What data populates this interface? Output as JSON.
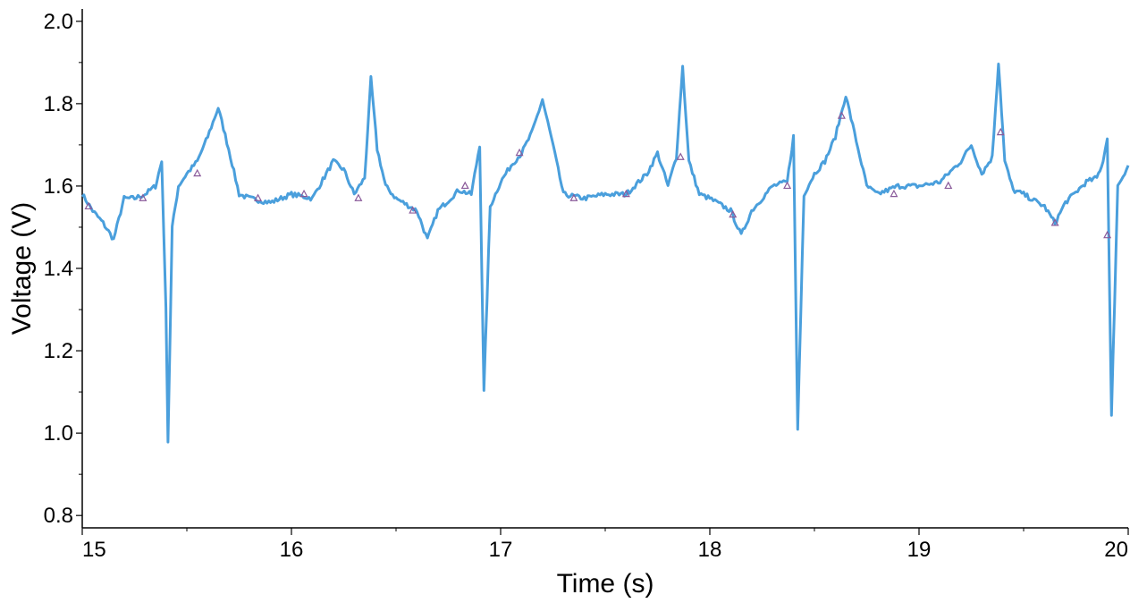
{
  "chart_data": {
    "type": "line",
    "title": "",
    "xlabel": "Time (s)",
    "ylabel": "Voltage (V)",
    "xlim": [
      15,
      20
    ],
    "ylim": [
      0.77,
      2.03
    ],
    "xticks": [
      15,
      16,
      17,
      18,
      19,
      20
    ],
    "yticks": [
      0.8,
      1.0,
      1.2,
      1.4,
      1.6,
      1.8,
      2.0
    ],
    "ytick_labels": [
      "0.8",
      "1.0",
      "1.2",
      "1.4",
      "1.6",
      "1.8",
      "2.0"
    ],
    "grid": false,
    "legend": "none",
    "series": [
      {
        "color": "#4a9fdc",
        "x": [
          15.0,
          15.05,
          15.1,
          15.15,
          15.2,
          15.25,
          15.3,
          15.35,
          15.38,
          15.4,
          15.41,
          15.43,
          15.46,
          15.5,
          15.55,
          15.6,
          15.65,
          15.7,
          15.75,
          15.8,
          15.9,
          16.0,
          16.1,
          16.2,
          16.25,
          16.3,
          16.35,
          16.38,
          16.41,
          16.45,
          16.5,
          16.6,
          16.65,
          16.7,
          16.8,
          16.86,
          16.9,
          16.92,
          16.95,
          17.0,
          17.05,
          17.1,
          17.15,
          17.2,
          17.25,
          17.3,
          17.4,
          17.5,
          17.6,
          17.7,
          17.75,
          17.8,
          17.84,
          17.87,
          17.9,
          17.95,
          18.0,
          18.1,
          18.15,
          18.2,
          18.3,
          18.37,
          18.4,
          18.42,
          18.45,
          18.5,
          18.55,
          18.6,
          18.65,
          18.7,
          18.75,
          18.8,
          18.9,
          19.0,
          19.1,
          19.2,
          19.25,
          19.3,
          19.35,
          19.38,
          19.41,
          19.45,
          19.5,
          19.6,
          19.65,
          19.7,
          19.8,
          19.85,
          19.88,
          19.9,
          19.92,
          19.95,
          20.0
        ],
        "y": [
          1.58,
          1.54,
          1.51,
          1.47,
          1.57,
          1.57,
          1.58,
          1.6,
          1.66,
          1.3,
          0.98,
          1.5,
          1.6,
          1.63,
          1.66,
          1.72,
          1.79,
          1.69,
          1.58,
          1.57,
          1.56,
          1.58,
          1.57,
          1.66,
          1.64,
          1.58,
          1.62,
          1.86,
          1.69,
          1.6,
          1.57,
          1.54,
          1.47,
          1.54,
          1.59,
          1.58,
          1.7,
          1.1,
          1.55,
          1.61,
          1.65,
          1.68,
          1.73,
          1.81,
          1.7,
          1.58,
          1.57,
          1.58,
          1.58,
          1.63,
          1.68,
          1.6,
          1.67,
          1.89,
          1.66,
          1.58,
          1.57,
          1.54,
          1.48,
          1.54,
          1.6,
          1.61,
          1.72,
          1.01,
          1.58,
          1.63,
          1.66,
          1.72,
          1.82,
          1.71,
          1.6,
          1.58,
          1.6,
          1.6,
          1.61,
          1.66,
          1.7,
          1.63,
          1.67,
          1.9,
          1.66,
          1.59,
          1.58,
          1.55,
          1.51,
          1.56,
          1.61,
          1.62,
          1.66,
          1.72,
          1.04,
          1.6,
          1.65
        ]
      }
    ],
    "markers": {
      "color": "#8a5a9a",
      "shape": "triangle",
      "x": [
        15.03,
        15.29,
        15.55,
        15.84,
        16.06,
        16.32,
        16.58,
        16.83,
        17.09,
        17.35,
        17.6,
        17.86,
        18.11,
        18.37,
        18.63,
        18.88,
        19.14,
        19.39,
        19.65,
        19.9
      ],
      "y": [
        1.55,
        1.57,
        1.63,
        1.57,
        1.58,
        1.57,
        1.54,
        1.6,
        1.68,
        1.57,
        1.58,
        1.67,
        1.53,
        1.6,
        1.77,
        1.58,
        1.6,
        1.73,
        1.51,
        1.48
      ]
    }
  }
}
